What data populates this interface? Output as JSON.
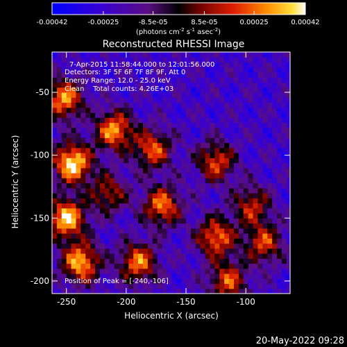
{
  "colorbar": {
    "ticks": [
      "-0.00042",
      "-0.00025",
      "-8.5e-05",
      "8.5e-05",
      "0.00025",
      "0.00042"
    ],
    "units_prefix": "(photons cm",
    "units_exp1": "-2",
    "units_mid": " s",
    "units_exp2": "-1",
    "units_mid2": " asec",
    "units_exp3": "-2",
    "units_suffix": ")"
  },
  "chart_data": {
    "type": "heatmap",
    "title": "Reconstructed RHESSI Image",
    "xlabel": "Heliocentric X (arcsec)",
    "ylabel": "Heliocentric Y (arcsec)",
    "x_ticks": [
      "-250",
      "-200",
      "-150",
      "-100"
    ],
    "y_ticks": [
      "-50",
      "-100",
      "-150",
      "-200"
    ],
    "xlim": [
      -262,
      -63
    ],
    "ylim": [
      -210,
      -18
    ],
    "colormap": "blue-purple-red-yellow-white",
    "vmin": -0.00042,
    "vmax": 0.00042,
    "peak_position": [
      -240,
      -106
    ],
    "hotspots": [
      {
        "x": -245,
        "y": -106,
        "value": 0.00042
      },
      {
        "x": -250,
        "y": -150,
        "value": 0.00038
      },
      {
        "x": -238,
        "y": -185,
        "value": 0.00034
      },
      {
        "x": -252,
        "y": -55,
        "value": 0.0003
      },
      {
        "x": -210,
        "y": -80,
        "value": 0.0003
      },
      {
        "x": -190,
        "y": -185,
        "value": 0.00026
      },
      {
        "x": -170,
        "y": -140,
        "value": 0.00026
      },
      {
        "x": -178,
        "y": -95,
        "value": 0.00022
      },
      {
        "x": -125,
        "y": -105,
        "value": 0.0002
      },
      {
        "x": -125,
        "y": -165,
        "value": 0.00026
      },
      {
        "x": -115,
        "y": -200,
        "value": 0.0002
      },
      {
        "x": -85,
        "y": -170,
        "value": 0.00018
      },
      {
        "x": -95,
        "y": -140,
        "value": 0.00014
      },
      {
        "x": -215,
        "y": -130,
        "value": 0.00012
      }
    ]
  },
  "annotations": {
    "time_range": "7-Apr-2015 11:58:44.000 to 12:01:56.000",
    "detectors": "Detectors: 3F 5F 6F 7F 8F 9F, Att 0",
    "energy": "Energy Range: 12.0 - 25.0 keV",
    "clean": "Clean    Total counts: 4.26E+03",
    "peak": "Position of Peak = [-240,-106]"
  },
  "footer": {
    "timestamp": "20-May-2022 09:28"
  }
}
